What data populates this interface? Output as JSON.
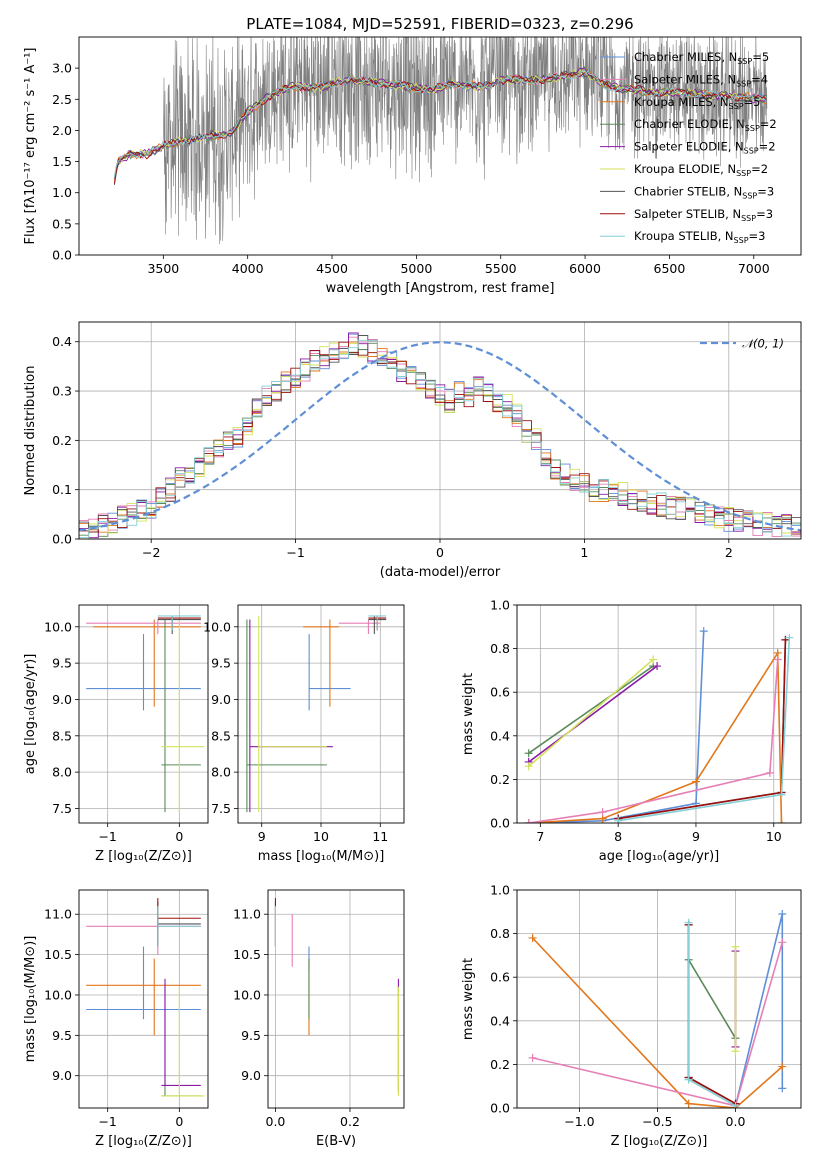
{
  "title": "PLATE=1084, MJD=52591, FIBERID=0323, z=0.296",
  "colors": {
    "chabrier_miles": "#5f8fd6",
    "salpeter_miles": "#e57fb6",
    "kroupa_miles": "#e2771c",
    "chabrier_elodie": "#5b8a5b",
    "salpeter_elodie": "#8b1aa8",
    "kroupa_elodie": "#d4e25a",
    "chabrier_stelib": "#555555",
    "salpeter_stelib": "#9b1010",
    "kroupa_stelib": "#86cfd6",
    "data": "#808080",
    "normal": "#5f8fd6"
  },
  "legend": [
    {
      "key": "chabrier_miles",
      "pre": "Chabrier MILES, N",
      "sub": "SSP",
      "post": "=5"
    },
    {
      "key": "salpeter_miles",
      "pre": "Salpeter MILES, N",
      "sub": "SSP",
      "post": "=4"
    },
    {
      "key": "kroupa_miles",
      "pre": "Kroupa MILES, N",
      "sub": "SSP",
      "post": "=5"
    },
    {
      "key": "chabrier_elodie",
      "pre": "Chabrier ELODIE, N",
      "sub": "SSP",
      "post": "=2"
    },
    {
      "key": "salpeter_elodie",
      "pre": "Salpeter ELODIE, N",
      "sub": "SSP",
      "post": "=2"
    },
    {
      "key": "kroupa_elodie",
      "pre": "Kroupa ELODIE, N",
      "sub": "SSP",
      "post": "=2"
    },
    {
      "key": "chabrier_stelib",
      "pre": "Chabrier STELIB, N",
      "sub": "SSP",
      "post": "=3"
    },
    {
      "key": "salpeter_stelib",
      "pre": "Salpeter STELIB, N",
      "sub": "SSP",
      "post": "=3"
    },
    {
      "key": "kroupa_stelib",
      "pre": "Kroupa STELIB, N",
      "sub": "SSP",
      "post": "=3"
    }
  ],
  "chart_data": [
    {
      "id": "spectrum",
      "type": "line",
      "xlabel": "wavelength [Angstrom, rest frame]",
      "ylabel": "Flux [fλ10⁻¹⁷ erg cm⁻² s⁻¹ A⁻¹]",
      "xlim": [
        3000,
        7280
      ],
      "ylim": [
        0,
        3.5
      ],
      "xticks": [
        3500,
        4000,
        4500,
        5000,
        5500,
        6000,
        6500,
        7000
      ],
      "yticks": [
        0.0,
        0.5,
        1.0,
        1.5,
        2.0,
        2.5,
        3.0
      ],
      "data_range": [
        3210,
        7080
      ],
      "model_x": [
        3210,
        3230,
        3300,
        3400,
        3500,
        3600,
        3700,
        3800,
        3900,
        4000,
        4100,
        4200,
        4300,
        4400,
        4500,
        4600,
        4700,
        4800,
        4900,
        5000,
        5100,
        5200,
        5300,
        5400,
        5500,
        5600,
        5700,
        5800,
        5900,
        6000,
        6100,
        6200,
        6300,
        6400,
        6500,
        6600,
        6700,
        6800,
        6900,
        7000,
        7080
      ],
      "model_y": [
        1.2,
        1.5,
        1.62,
        1.62,
        1.75,
        1.82,
        1.88,
        1.92,
        1.95,
        2.3,
        2.5,
        2.65,
        2.72,
        2.68,
        2.75,
        2.82,
        2.78,
        2.75,
        2.72,
        2.68,
        2.66,
        2.74,
        2.72,
        2.7,
        2.8,
        2.82,
        2.8,
        2.84,
        2.88,
        2.95,
        2.75,
        2.68,
        2.66,
        2.6,
        2.62,
        2.6,
        2.58,
        2.55,
        2.55,
        2.52,
        2.5
      ]
    },
    {
      "id": "residuals",
      "type": "step",
      "xlabel": "(data-model)/error",
      "ylabel": "Normed distribution",
      "xlim": [
        -2.5,
        2.5
      ],
      "ylim": [
        0,
        0.44
      ],
      "xticks": [
        -2,
        -1,
        0,
        1,
        2
      ],
      "yticks": [
        0.0,
        0.1,
        0.2,
        0.3,
        0.4
      ],
      "normal_label": "𝒩(0, 1)",
      "bin_width": 0.1,
      "base": [
        0.02,
        0.025,
        0.03,
        0.035,
        0.045,
        0.05,
        0.06,
        0.065,
        0.08,
        0.1,
        0.12,
        0.135,
        0.15,
        0.17,
        0.19,
        0.2,
        0.21,
        0.235,
        0.26,
        0.285,
        0.3,
        0.315,
        0.33,
        0.345,
        0.36,
        0.37,
        0.38,
        0.39,
        0.395,
        0.39,
        0.38,
        0.37,
        0.36,
        0.34,
        0.33,
        0.32,
        0.3,
        0.29,
        0.28,
        0.3,
        0.29,
        0.31,
        0.3,
        0.28,
        0.27,
        0.25,
        0.22,
        0.2,
        0.16,
        0.14,
        0.13,
        0.12,
        0.11,
        0.1,
        0.1,
        0.095,
        0.09,
        0.085,
        0.08,
        0.075,
        0.07,
        0.065,
        0.06,
        0.06,
        0.05,
        0.05,
        0.045,
        0.04,
        0.04,
        0.035,
        0.03,
        0.03,
        0.025,
        0.025,
        0.02
      ]
    },
    {
      "id": "age_vs_Z",
      "type": "errorbar",
      "xlabel": "Z [log₁₀(Z/Z⊙)]",
      "ylabel": "age  [log₁₀(age/yr)]",
      "xlim": [
        -1.4,
        0.4
      ],
      "ylim": [
        7.3,
        10.3
      ],
      "xticks": [
        -1,
        0
      ],
      "yticks": [
        7.5,
        8.0,
        8.5,
        9.0,
        9.5,
        10.0
      ],
      "points": [
        {
          "s": "chabrier_miles",
          "x": -0.5,
          "y": 9.15,
          "xe": [
            -1.3,
            0.3
          ],
          "ye": [
            8.85,
            9.9
          ]
        },
        {
          "s": "kroupa_miles",
          "x": -0.35,
          "y": 10.0,
          "xe": [
            -1.2,
            0.3
          ],
          "ye": [
            8.9,
            10.1
          ]
        },
        {
          "s": "salpeter_miles",
          "x": -0.3,
          "y": 10.05,
          "xe": [
            -1.3,
            0.3
          ],
          "ye": [
            9.9,
            10.1
          ]
        },
        {
          "s": "chabrier_elodie",
          "x": -0.2,
          "y": 8.1,
          "xe": [
            -0.25,
            0.3
          ],
          "ye": [
            7.45,
            10.1
          ]
        },
        {
          "s": "kroupa_elodie",
          "x": 0.0,
          "y": 8.35,
          "xe": [
            -0.25,
            0.35
          ],
          "ye": [
            7.45,
            10.1
          ]
        },
        {
          "s": "chabrier_stelib",
          "x": -0.1,
          "y": 10.1,
          "xe": [
            -0.3,
            0.3
          ],
          "ye": [
            9.9,
            10.15
          ]
        },
        {
          "s": "salpeter_stelib",
          "x": -0.1,
          "y": 10.12,
          "xe": [
            -0.3,
            0.3
          ],
          "ye": [
            9.95,
            10.15
          ]
        },
        {
          "s": "kroupa_stelib",
          "x": -0.1,
          "y": 10.15,
          "xe": [
            -0.3,
            0.3
          ],
          "ye": [
            9.95,
            10.15
          ]
        }
      ]
    },
    {
      "id": "age_vs_mass",
      "type": "errorbar",
      "xlabel": "mass [log₁₀(M/M⊙)]",
      "ylabel": "",
      "xlim": [
        8.6,
        11.4
      ],
      "ylim": [
        7.3,
        10.3
      ],
      "xticks": [
        9,
        10,
        11
      ],
      "yticks": [
        7.5,
        8.0,
        8.5,
        9.0,
        9.5,
        10.0
      ],
      "points": [
        {
          "s": "chabrier_miles",
          "x": 9.8,
          "y": 9.15,
          "xe": [
            9.8,
            10.5
          ],
          "ye": [
            8.85,
            9.9
          ]
        },
        {
          "s": "kroupa_miles",
          "x": 10.15,
          "y": 10.0,
          "xe": [
            9.7,
            10.3
          ],
          "ye": [
            8.9,
            10.1
          ]
        },
        {
          "s": "salpeter_miles",
          "x": 10.8,
          "y": 10.05,
          "xe": [
            10.3,
            11.0
          ],
          "ye": [
            9.9,
            10.1
          ]
        },
        {
          "s": "chabrier_elodie",
          "x": 8.75,
          "y": 8.1,
          "xe": [
            8.75,
            10.1
          ],
          "ye": [
            7.45,
            10.1
          ]
        },
        {
          "s": "salpeter_elodie",
          "x": 8.8,
          "y": 8.35,
          "xe": [
            8.8,
            10.2
          ],
          "ye": [
            7.45,
            10.1
          ]
        },
        {
          "s": "kroupa_elodie",
          "x": 8.95,
          "y": 8.35,
          "xe": [
            8.95,
            10.1
          ],
          "ye": [
            7.45,
            10.15
          ]
        },
        {
          "s": "chabrier_stelib",
          "x": 10.9,
          "y": 10.1,
          "xe": [
            10.8,
            11.1
          ],
          "ye": [
            9.9,
            10.15
          ]
        },
        {
          "s": "salpeter_stelib",
          "x": 10.95,
          "y": 10.12,
          "xe": [
            10.8,
            11.1
          ],
          "ye": [
            9.95,
            10.15
          ]
        },
        {
          "s": "kroupa_stelib",
          "x": 10.95,
          "y": 10.15,
          "xe": [
            10.8,
            11.1
          ],
          "ye": [
            9.95,
            10.15
          ]
        }
      ]
    },
    {
      "id": "weight_vs_age",
      "type": "line",
      "xlabel": "age  [log₁₀(age/yr)]",
      "ylabel": "mass weight",
      "xlim": [
        6.7,
        10.35
      ],
      "ylim": [
        0,
        1
      ],
      "xticks": [
        7,
        8,
        9,
        10
      ],
      "yticks": [
        0.0,
        0.2,
        0.4,
        0.6,
        0.8,
        1.0
      ],
      "series": [
        {
          "s": "chabrier_miles",
          "x": [
            6.85,
            7.8,
            9.0,
            9.1
          ],
          "y": [
            0.0,
            0.01,
            0.09,
            0.88
          ]
        },
        {
          "s": "kroupa_miles",
          "x": [
            6.85,
            7.8,
            9.0,
            10.05,
            10.1
          ],
          "y": [
            0.0,
            0.02,
            0.19,
            0.78,
            0.0
          ]
        },
        {
          "s": "salpeter_miles",
          "x": [
            6.85,
            7.8,
            9.95,
            10.05
          ],
          "y": [
            0.0,
            0.05,
            0.23,
            0.75
          ]
        },
        {
          "s": "chabrier_elodie",
          "x": [
            6.85,
            8.45
          ],
          "y": [
            0.32,
            0.72
          ]
        },
        {
          "s": "salpeter_elodie",
          "x": [
            6.85,
            8.5
          ],
          "y": [
            0.28,
            0.72
          ]
        },
        {
          "s": "kroupa_elodie",
          "x": [
            6.85,
            8.45
          ],
          "y": [
            0.26,
            0.75
          ]
        },
        {
          "s": "chabrier_stelib",
          "x": [
            8.0,
            10.1,
            10.15
          ],
          "y": [
            0.02,
            0.14,
            0.84
          ]
        },
        {
          "s": "salpeter_stelib",
          "x": [
            8.0,
            10.1,
            10.15
          ],
          "y": [
            0.02,
            0.14,
            0.84
          ]
        },
        {
          "s": "kroupa_stelib",
          "x": [
            8.0,
            10.1,
            10.2
          ],
          "y": [
            0.01,
            0.13,
            0.85
          ]
        }
      ]
    },
    {
      "id": "mass_vs_Z",
      "type": "errorbar",
      "xlabel": "Z [log₁₀(Z/Z⊙)]",
      "ylabel": "mass [log₁₀(M/M⊙)]",
      "xlim": [
        -1.4,
        0.4
      ],
      "ylim": [
        8.6,
        11.3
      ],
      "xticks": [
        -1,
        0
      ],
      "yticks": [
        9.0,
        9.5,
        10.0,
        10.5,
        11.0
      ],
      "points": [
        {
          "s": "chabrier_miles",
          "x": -0.5,
          "y": 9.82,
          "xe": [
            -1.3,
            0.3
          ],
          "ye": [
            9.7,
            10.6
          ]
        },
        {
          "s": "kroupa_miles",
          "x": -0.35,
          "y": 10.12,
          "xe": [
            -1.3,
            0.3
          ],
          "ye": [
            9.5,
            10.45
          ]
        },
        {
          "s": "salpeter_miles",
          "x": -0.3,
          "y": 10.85,
          "xe": [
            -1.3,
            0.3
          ],
          "ye": [
            10.5,
            11.1
          ]
        },
        {
          "s": "chabrier_elodie",
          "x": -0.2,
          "y": 8.75,
          "xe": [
            -0.25,
            0.3
          ],
          "ye": [
            8.75,
            10.1
          ]
        },
        {
          "s": "salpeter_elodie",
          "x": -0.2,
          "y": 8.88,
          "xe": [
            -0.25,
            0.3
          ],
          "ye": [
            8.88,
            10.2
          ]
        },
        {
          "s": "kroupa_elodie",
          "x": 0.0,
          "y": 8.75,
          "xe": [
            -0.25,
            0.35
          ],
          "ye": [
            8.75,
            10.1
          ]
        },
        {
          "s": "chabrier_stelib",
          "x": -0.3,
          "y": 10.88,
          "xe": [
            -0.3,
            0.3
          ],
          "ye": [
            10.6,
            11.15
          ]
        },
        {
          "s": "salpeter_stelib",
          "x": -0.3,
          "y": 10.95,
          "xe": [
            -0.3,
            0.3
          ],
          "ye": [
            10.6,
            11.2
          ]
        },
        {
          "s": "kroupa_stelib",
          "x": -0.3,
          "y": 10.85,
          "xe": [
            -0.3,
            0.3
          ],
          "ye": [
            10.6,
            11.1
          ]
        }
      ]
    },
    {
      "id": "mass_vs_ebv",
      "type": "errorbar",
      "xlabel": "E(B-V)",
      "ylabel": "",
      "xlim": [
        -0.02,
        0.345
      ],
      "ylim": [
        8.6,
        11.3
      ],
      "xticks": [
        0.0,
        0.2
      ],
      "yticks": [
        9.0,
        9.5,
        10.0,
        10.5,
        11.0
      ],
      "points": [
        {
          "s": "chabrier_miles",
          "x": 0.09,
          "y": 10.45,
          "ye": [
            10.3,
            10.6
          ]
        },
        {
          "s": "kroupa_miles",
          "x": 0.09,
          "y": 10.0,
          "ye": [
            9.5,
            10.45
          ]
        },
        {
          "s": "salpeter_miles",
          "x": 0.045,
          "y": 10.8,
          "ye": [
            10.35,
            11.0
          ]
        },
        {
          "s": "chabrier_elodie",
          "x": 0.09,
          "y": 10.1,
          "ye": [
            9.7,
            10.45
          ]
        },
        {
          "s": "salpeter_elodie",
          "x": 0.33,
          "y": 9.8,
          "ye": [
            8.8,
            10.2
          ]
        },
        {
          "s": "kroupa_elodie",
          "x": 0.33,
          "y": 9.4,
          "ye": [
            8.75,
            10.1
          ]
        },
        {
          "s": "chabrier_stelib",
          "x": 0.0,
          "y": 10.95,
          "ye": [
            10.6,
            11.15
          ]
        },
        {
          "s": "salpeter_stelib",
          "x": 0.0,
          "y": 11.0,
          "ye": [
            10.6,
            11.2
          ]
        },
        {
          "s": "kroupa_stelib",
          "x": 0.0,
          "y": 10.85,
          "ye": [
            10.6,
            11.1
          ]
        }
      ]
    },
    {
      "id": "weight_vs_Z",
      "type": "line",
      "xlabel": "Z [log₁₀(Z/Z⊙)]",
      "ylabel": "mass weight",
      "xlim": [
        -1.4,
        0.42
      ],
      "ylim": [
        0,
        1
      ],
      "xticks": [
        -1.0,
        -0.5,
        0.0
      ],
      "yticks": [
        0.0,
        0.2,
        0.4,
        0.6,
        0.8,
        1.0
      ],
      "series": [
        {
          "s": "chabrier_miles",
          "x": [
            0.0,
            0.3,
            0.3
          ],
          "y": [
            0.01,
            0.89,
            0.09
          ]
        },
        {
          "s": "kroupa_miles",
          "x": [
            -1.3,
            -0.3,
            0.0,
            0.3
          ],
          "y": [
            0.78,
            0.02,
            0.0,
            0.19
          ]
        },
        {
          "s": "salpeter_miles",
          "x": [
            -1.3,
            0.0,
            0.3
          ],
          "y": [
            0.23,
            0.01,
            0.76
          ]
        },
        {
          "s": "chabrier_elodie",
          "x": [
            -0.3,
            0.0
          ],
          "y": [
            0.68,
            0.32
          ]
        },
        {
          "s": "salpeter_elodie",
          "x": [
            0.0,
            0.0
          ],
          "y": [
            0.72,
            0.28
          ]
        },
        {
          "s": "kroupa_elodie",
          "x": [
            0.0,
            0.0
          ],
          "y": [
            0.74,
            0.26
          ]
        },
        {
          "s": "chabrier_stelib",
          "x": [
            -0.3,
            -0.3,
            0.0
          ],
          "y": [
            0.84,
            0.14,
            0.02
          ]
        },
        {
          "s": "salpeter_stelib",
          "x": [
            -0.3,
            -0.3,
            0.0
          ],
          "y": [
            0.84,
            0.14,
            0.02
          ]
        },
        {
          "s": "kroupa_stelib",
          "x": [
            -0.3,
            -0.3,
            0.0
          ],
          "y": [
            0.85,
            0.13,
            0.01
          ]
        }
      ]
    }
  ]
}
